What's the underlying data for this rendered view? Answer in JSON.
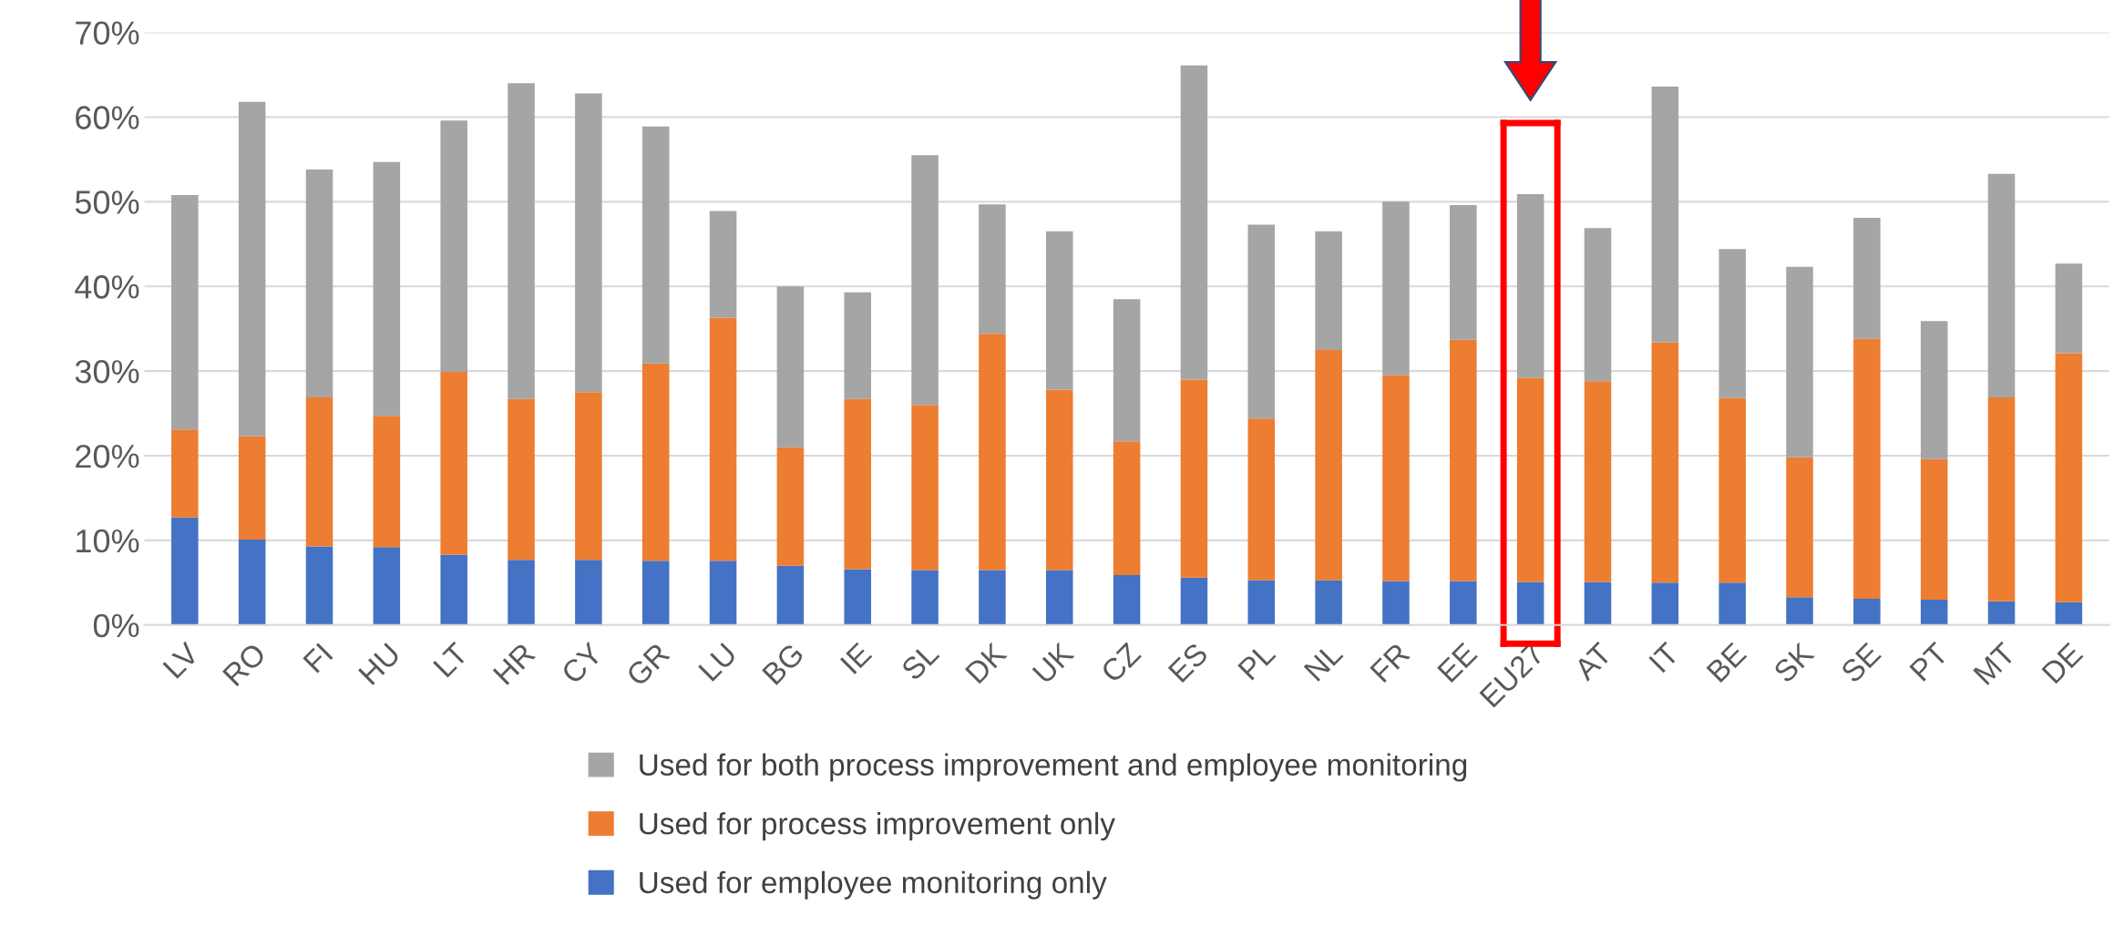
{
  "chart_data": {
    "type": "bar",
    "stacked": true,
    "categories": [
      "LV",
      "RO",
      "FI",
      "HU",
      "LT",
      "HR",
      "CY",
      "GR",
      "LU",
      "BG",
      "IE",
      "SL",
      "DK",
      "UK",
      "CZ",
      "ES",
      "PL",
      "NL",
      "FR",
      "EE",
      "EU27",
      "AT",
      "IT",
      "BE",
      "SK",
      "SE",
      "PT",
      "MT",
      "DE"
    ],
    "series": [
      {
        "name": "Used for employee monitoring only",
        "color": "#4472c4",
        "values": [
          12.7,
          10.1,
          9.3,
          9.2,
          8.3,
          7.7,
          7.7,
          7.6,
          7.6,
          7.0,
          6.6,
          6.5,
          6.5,
          6.5,
          5.9,
          5.6,
          5.3,
          5.3,
          5.2,
          5.2,
          5.1,
          5.1,
          5.0,
          5.0,
          3.3,
          3.1,
          3.0,
          2.8,
          2.7
        ]
      },
      {
        "name": "Used for process improvement only",
        "color": "#ed7d31",
        "values": [
          10.4,
          12.2,
          17.6,
          15.5,
          21.6,
          19.0,
          19.8,
          23.3,
          28.7,
          14.0,
          20.1,
          19.5,
          27.9,
          21.3,
          15.8,
          23.4,
          19.1,
          27.2,
          24.3,
          28.5,
          24.1,
          23.7,
          28.4,
          21.8,
          16.5,
          30.7,
          16.6,
          24.1,
          29.4
        ]
      },
      {
        "name": "Used for both process improvement and employee monitoring",
        "color": "#a5a5a5",
        "values": [
          27.7,
          39.5,
          26.9,
          30.0,
          29.7,
          37.3,
          35.3,
          28.0,
          12.6,
          19.0,
          12.6,
          29.5,
          15.3,
          18.7,
          16.8,
          37.1,
          22.9,
          14.0,
          20.5,
          15.9,
          21.7,
          18.1,
          30.2,
          17.6,
          22.5,
          14.3,
          16.3,
          26.4,
          10.6
        ]
      }
    ],
    "ylim": [
      0,
      70
    ],
    "yticks": [
      {
        "value": 0,
        "label": "0%"
      },
      {
        "value": 10,
        "label": "10%"
      },
      {
        "value": 20,
        "label": "20%"
      },
      {
        "value": 30,
        "label": "30%"
      },
      {
        "value": 40,
        "label": "40%"
      },
      {
        "value": 50,
        "label": "50%"
      },
      {
        "value": 60,
        "label": "60%"
      },
      {
        "value": 70,
        "label": "70%"
      }
    ],
    "grid": "y",
    "legend": "bottom"
  }
}
